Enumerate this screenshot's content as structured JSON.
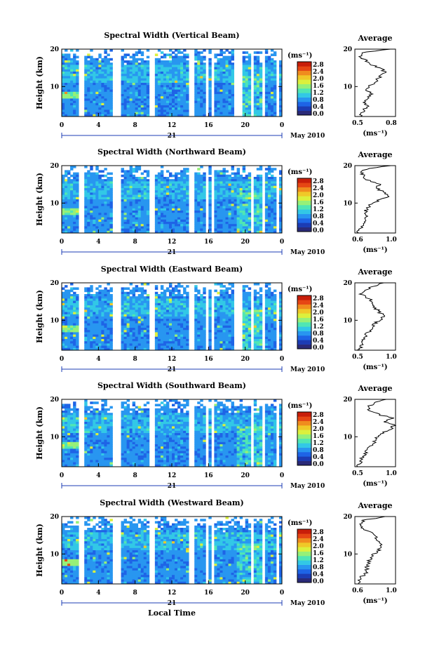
{
  "colors": {
    "scale": [
      "#2a2a78",
      "#1c3cb4",
      "#1e64e6",
      "#2896f0",
      "#32c8e6",
      "#50e6b4",
      "#96f078",
      "#dcf03c",
      "#f0c828",
      "#f08c1e",
      "#e64614",
      "#c81e0a"
    ]
  },
  "shared": {
    "xtick_labels": [
      "0",
      "4",
      "8",
      "12",
      "16",
      "20",
      "0"
    ],
    "date_label": "21",
    "month_label": "May 2010",
    "height_label": "Height (km)",
    "unit_label": "(ms⁻¹)",
    "avg_title": "Average",
    "avg_unit": "(ms⁻¹)",
    "x_axis_title": "Local Time",
    "colorbar_ticks": [
      "2.8",
      "2.4",
      "2.0",
      "1.6",
      "1.2",
      "0.8",
      "0.4",
      "0.0"
    ]
  },
  "chart_data": [
    {
      "type": "heatmap",
      "title": "Spectral Width (Vertical Beam)",
      "ylabel": "Height (km)",
      "xlabel": "Local Time",
      "x_range_hours": [
        0,
        24
      ],
      "ylim_km": [
        2,
        20
      ],
      "yticks": [
        "20",
        "10"
      ],
      "colorbar_range": [
        0.0,
        2.8
      ],
      "gaps_hours": [
        [
          1.7,
          2.0
        ],
        [
          2.3,
          2.6
        ],
        [
          5.6,
          6.4
        ],
        [
          9.6,
          10.2
        ],
        [
          13.9,
          14.4
        ],
        [
          15.7,
          16.0
        ],
        [
          16.3,
          16.6
        ],
        [
          18.8,
          19.6
        ],
        [
          20.7,
          21.0
        ],
        [
          21.8,
          22.1
        ],
        [
          23.4,
          23.6
        ]
      ],
      "average": {
        "xlim": [
          0.5,
          0.9
        ],
        "xticks": [
          "0.5",
          "0.8"
        ],
        "yticks": [
          "20",
          "10"
        ],
        "heights_km": [
          2,
          3,
          4,
          5,
          6,
          7,
          8,
          9,
          10,
          11,
          12,
          13,
          14,
          15,
          16,
          17,
          18,
          19,
          20
        ],
        "values": [
          0.56,
          0.58,
          0.6,
          0.62,
          0.6,
          0.64,
          0.66,
          0.62,
          0.64,
          0.7,
          0.72,
          0.76,
          0.8,
          0.74,
          0.66,
          0.6,
          0.56,
          0.55,
          0.85
        ]
      }
    },
    {
      "type": "heatmap",
      "title": "Spectral Width (Northward Beam)",
      "ylabel": "Height (km)",
      "xlabel": "Local Time",
      "x_range_hours": [
        0,
        24
      ],
      "ylim_km": [
        2,
        20
      ],
      "yticks": [
        "20",
        "10"
      ],
      "colorbar_range": [
        0.0,
        2.8
      ],
      "gaps_hours": [
        [
          1.7,
          2.0
        ],
        [
          2.3,
          2.6
        ],
        [
          5.6,
          6.4
        ],
        [
          9.6,
          10.2
        ],
        [
          13.9,
          14.4
        ],
        [
          15.7,
          16.0
        ],
        [
          16.3,
          16.6
        ],
        [
          20.7,
          21.0
        ],
        [
          21.8,
          22.1
        ],
        [
          23.4,
          23.6
        ]
      ],
      "average": {
        "xlim": [
          0.5,
          1.2
        ],
        "xticks": [
          "0.6",
          "1.0"
        ],
        "yticks": [
          "20",
          "10"
        ],
        "heights_km": [
          2,
          3,
          4,
          5,
          6,
          7,
          8,
          9,
          10,
          11,
          12,
          13,
          14,
          15,
          16,
          17,
          18,
          19,
          20
        ],
        "values": [
          0.55,
          0.58,
          0.62,
          0.66,
          0.7,
          0.66,
          0.7,
          0.74,
          0.8,
          0.96,
          1.1,
          0.98,
          0.86,
          0.92,
          0.74,
          0.64,
          0.62,
          0.68,
          1.12
        ]
      }
    },
    {
      "type": "heatmap",
      "title": "Spectral Width (Eastward Beam)",
      "ylabel": "Height (km)",
      "xlabel": "Local Time",
      "x_range_hours": [
        0,
        24
      ],
      "ylim_km": [
        2,
        20
      ],
      "yticks": [
        "20",
        "10"
      ],
      "colorbar_range": [
        0.0,
        2.8
      ],
      "gaps_hours": [
        [
          1.7,
          2.0
        ],
        [
          2.3,
          2.6
        ],
        [
          5.6,
          6.4
        ],
        [
          9.6,
          10.2
        ],
        [
          13.9,
          14.4
        ],
        [
          15.7,
          16.0
        ],
        [
          16.3,
          16.6
        ],
        [
          18.8,
          19.6
        ],
        [
          20.7,
          21.0
        ],
        [
          21.8,
          22.1
        ],
        [
          23.4,
          23.6
        ]
      ],
      "average": {
        "xlim": [
          0.5,
          1.2
        ],
        "xticks": [
          "0.5",
          "1.0"
        ],
        "yticks": [
          "20",
          "10"
        ],
        "heights_km": [
          2,
          3,
          4,
          5,
          6,
          7,
          8,
          9,
          10,
          11,
          12,
          13,
          14,
          15,
          16,
          17,
          18,
          19,
          20
        ],
        "values": [
          0.55,
          0.6,
          0.64,
          0.66,
          0.7,
          0.74,
          0.78,
          0.84,
          0.92,
          1.0,
          0.94,
          0.86,
          0.8,
          0.82,
          0.7,
          0.62,
          0.66,
          0.8,
          1.0
        ]
      }
    },
    {
      "type": "heatmap",
      "title": "Spectral Width (Southward Beam)",
      "ylabel": "Height (km)",
      "xlabel": "Local Time",
      "x_range_hours": [
        0,
        24
      ],
      "ylim_km": [
        2,
        20
      ],
      "yticks": [
        "20",
        "10"
      ],
      "colorbar_range": [
        0.0,
        2.8
      ],
      "gaps_hours": [
        [
          1.7,
          2.0
        ],
        [
          2.3,
          2.6
        ],
        [
          5.6,
          6.4
        ],
        [
          9.6,
          10.2
        ],
        [
          13.9,
          14.4
        ],
        [
          15.7,
          16.0
        ],
        [
          16.3,
          16.6
        ],
        [
          20.7,
          21.0
        ],
        [
          21.8,
          22.1
        ],
        [
          23.4,
          23.6
        ]
      ],
      "average": {
        "xlim": [
          0.5,
          1.2
        ],
        "xticks": [
          "0.5",
          "1.0"
        ],
        "yticks": [
          "20",
          "10"
        ],
        "heights_km": [
          2,
          3,
          4,
          5,
          6,
          7,
          8,
          9,
          10,
          11,
          12,
          13,
          14,
          15,
          16,
          17,
          18,
          19,
          20
        ],
        "values": [
          0.55,
          0.58,
          0.62,
          0.66,
          0.7,
          0.74,
          0.8,
          0.84,
          0.9,
          0.98,
          1.1,
          1.18,
          1.0,
          1.14,
          0.9,
          0.76,
          0.7,
          0.84,
          1.04
        ]
      }
    },
    {
      "type": "heatmap",
      "title": "Spectral Width (Westward Beam)",
      "ylabel": "Height (km)",
      "xlabel": "Local Time",
      "x_range_hours": [
        0,
        24
      ],
      "ylim_km": [
        2,
        20
      ],
      "yticks": [
        "20",
        "10"
      ],
      "colorbar_range": [
        0.0,
        2.8
      ],
      "gaps_hours": [
        [
          1.7,
          2.0
        ],
        [
          2.3,
          2.6
        ],
        [
          5.6,
          6.4
        ],
        [
          9.6,
          10.2
        ],
        [
          13.9,
          14.4
        ],
        [
          15.7,
          16.0
        ],
        [
          16.3,
          16.6
        ],
        [
          20.7,
          21.0
        ],
        [
          21.8,
          22.1
        ],
        [
          23.4,
          23.6
        ]
      ],
      "average": {
        "xlim": [
          0.5,
          1.2
        ],
        "xticks": [
          "0.6",
          "1.0"
        ],
        "yticks": [
          "20",
          "10"
        ],
        "heights_km": [
          2,
          3,
          4,
          5,
          6,
          7,
          8,
          9,
          10,
          11,
          12,
          13,
          14,
          15,
          16,
          17,
          18,
          19,
          20
        ],
        "values": [
          0.55,
          0.58,
          0.62,
          0.68,
          0.72,
          0.7,
          0.74,
          0.78,
          0.84,
          0.9,
          0.96,
          0.92,
          0.88,
          0.84,
          0.74,
          0.64,
          0.6,
          0.66,
          1.02
        ]
      }
    }
  ]
}
